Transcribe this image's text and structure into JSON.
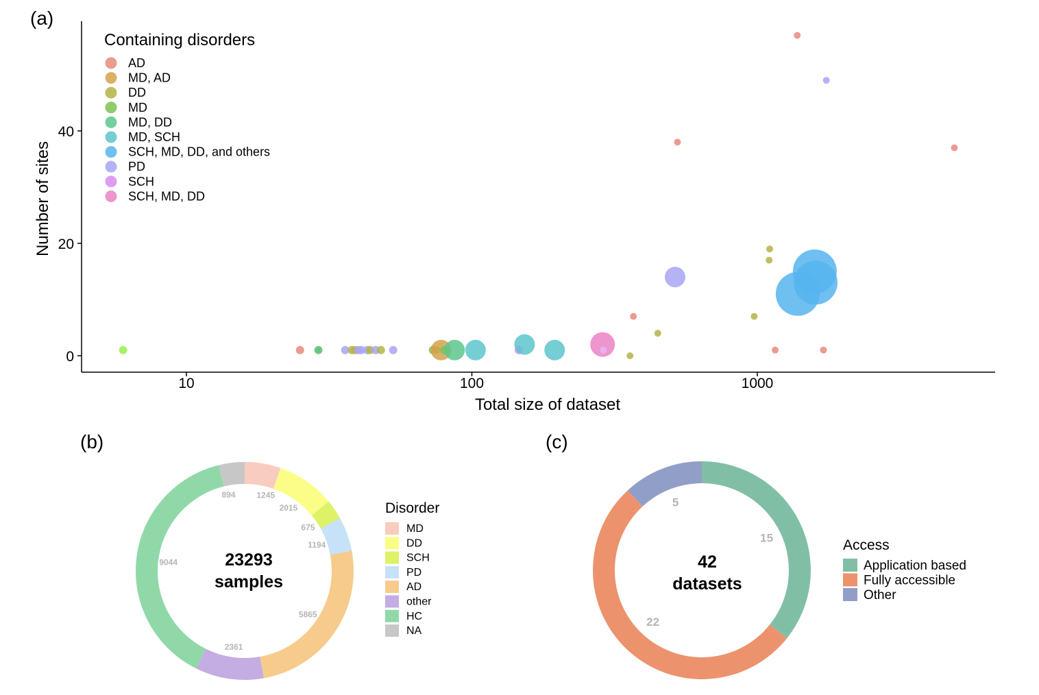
{
  "panels": {
    "a": "(a)",
    "b": "(b)",
    "c": "(c)"
  },
  "chart_data": [
    {
      "type": "scatter",
      "panel": "(a)",
      "title": "",
      "xlabel": "Total size of dataset",
      "ylabel": "Number of sites",
      "x_scale": "log",
      "x_ticks": [
        10,
        100,
        1000
      ],
      "x_tick_labels": [
        "10",
        "100",
        "1000"
      ],
      "y_ticks": [
        0,
        20,
        40
      ],
      "y_tick_labels": [
        "0",
        "20",
        "40"
      ],
      "xlim": [
        4.7,
        5500
      ],
      "ylim": [
        -3,
        60
      ],
      "grid": false,
      "legend_title": "Containing disorders",
      "legend_position": "top-left",
      "categories": [
        {
          "name": "AD",
          "color": "#E8897C"
        },
        {
          "name": "MD, AD",
          "color": "#D4A24C"
        },
        {
          "name": "DD",
          "color": "#B5B348"
        },
        {
          "name": "MD",
          "color": "#7DC351"
        },
        {
          "name": "MD, DD",
          "color": "#5DC68D"
        },
        {
          "name": "MD, SCH",
          "color": "#5CC5CB"
        },
        {
          "name": "SCH, MD, DD, and others",
          "color": "#56B4EE"
        },
        {
          "name": "PD",
          "color": "#A8A5F5"
        },
        {
          "name": "SCH",
          "color": "#D78CF0"
        },
        {
          "name": "SCH, MD, DD",
          "color": "#EC82C5"
        }
      ],
      "points": [
        {
          "x": 6,
          "y": 1,
          "cat": "MD",
          "size": 6,
          "color": "#99EE4C"
        },
        {
          "x": 25,
          "y": 1,
          "cat": "AD",
          "size": 6
        },
        {
          "x": 29,
          "y": 1,
          "cat": "MD",
          "size": 6
        },
        {
          "x": 29,
          "y": 1,
          "cat": "MD, DD",
          "size": 5
        },
        {
          "x": 36,
          "y": 1,
          "cat": "PD",
          "size": 6
        },
        {
          "x": 38,
          "y": 1,
          "cat": "DD",
          "size": 6
        },
        {
          "x": 39,
          "y": 1,
          "cat": "DD",
          "size": 6
        },
        {
          "x": 40,
          "y": 1,
          "cat": "PD",
          "size": 6
        },
        {
          "x": 41,
          "y": 1,
          "cat": "PD",
          "size": 6
        },
        {
          "x": 43,
          "y": 1,
          "cat": "PD",
          "size": 6
        },
        {
          "x": 44,
          "y": 1,
          "cat": "DD",
          "size": 6
        },
        {
          "x": 46,
          "y": 1,
          "cat": "PD",
          "size": 6
        },
        {
          "x": 48,
          "y": 1,
          "cat": "DD",
          "size": 6
        },
        {
          "x": 53,
          "y": 1,
          "cat": "PD",
          "size": 6
        },
        {
          "x": 73,
          "y": 1,
          "cat": "MD",
          "size": 6
        },
        {
          "x": 75,
          "y": 1,
          "cat": "DD",
          "size": 6
        },
        {
          "x": 78,
          "y": 1,
          "cat": "MD, AD",
          "size": 15
        },
        {
          "x": 80,
          "y": 1,
          "cat": "MD",
          "size": 6
        },
        {
          "x": 87,
          "y": 1,
          "cat": "MD, DD",
          "size": 15
        },
        {
          "x": 103,
          "y": 1,
          "cat": "MD, SCH",
          "size": 15
        },
        {
          "x": 146,
          "y": 1,
          "cat": "SCH",
          "size": 6
        },
        {
          "x": 153,
          "y": 2,
          "cat": "MD, SCH",
          "size": 15
        },
        {
          "x": 195,
          "y": 1,
          "cat": "MD, SCH",
          "size": 15
        },
        {
          "x": 287,
          "y": 2,
          "cat": "SCH, MD, DD",
          "size": 18
        },
        {
          "x": 289,
          "y": 1,
          "cat": "SCH",
          "size": 5,
          "color": "#E6B6F7"
        },
        {
          "x": 358,
          "y": 0,
          "cat": "DD",
          "size": 5
        },
        {
          "x": 368,
          "y": 7,
          "cat": "AD",
          "size": 5
        },
        {
          "x": 448,
          "y": 4,
          "cat": "DD",
          "size": 5
        },
        {
          "x": 515,
          "y": 14,
          "cat": "PD",
          "size": 15
        },
        {
          "x": 525,
          "y": 38,
          "cat": "AD",
          "size": 5
        },
        {
          "x": 975,
          "y": 7,
          "cat": "DD",
          "size": 5
        },
        {
          "x": 1100,
          "y": 17,
          "cat": "DD",
          "size": 5
        },
        {
          "x": 1105,
          "y": 19,
          "cat": "DD",
          "size": 5
        },
        {
          "x": 1155,
          "y": 1,
          "cat": "AD",
          "size": 5
        },
        {
          "x": 1380,
          "y": 57,
          "cat": "AD",
          "size": 5
        },
        {
          "x": 1385,
          "y": 11,
          "cat": "SCH, MD, DD, and others",
          "size": 32
        },
        {
          "x": 1590,
          "y": 15,
          "cat": "SCH, MD, DD, and others",
          "size": 32
        },
        {
          "x": 1600,
          "y": 13,
          "cat": "SCH, MD, DD, and others",
          "size": 32
        },
        {
          "x": 1705,
          "y": 1,
          "cat": "AD",
          "size": 5
        },
        {
          "x": 1745,
          "y": 49,
          "cat": "PD",
          "size": 5
        },
        {
          "x": 4900,
          "y": 37,
          "cat": "AD",
          "size": 5
        }
      ]
    },
    {
      "type": "pie",
      "panel": "(b)",
      "title": "",
      "center_value": "23293",
      "center_label": "samples",
      "legend_title": "Disorder",
      "legend_position": "right",
      "categories": [
        "MD",
        "DD",
        "SCH",
        "PD",
        "AD",
        "other",
        "HC",
        "NA"
      ],
      "values": [
        1245,
        2015,
        675,
        1194,
        5865,
        2361,
        9044,
        894
      ],
      "labels": [
        "1245",
        "2015",
        "675",
        "1194",
        "5865",
        "2361",
        "9044",
        "894"
      ],
      "colors": [
        "#F8CCBF",
        "#FBFD87",
        "#DDF266",
        "#C6E2F8",
        "#F7CB8C",
        "#C3ADE3",
        "#91D8A9",
        "#C7C7C7"
      ]
    },
    {
      "type": "pie",
      "panel": "(c)",
      "title": "",
      "center_value": "42",
      "center_label": "datasets",
      "legend_title": "Access",
      "legend_position": "right",
      "categories": [
        "Application based",
        "Fully accessible",
        "Other"
      ],
      "values": [
        15,
        22,
        5
      ],
      "labels": [
        "15",
        "22",
        "5"
      ],
      "colors": [
        "#80BFA6",
        "#EC936D",
        "#919EC8"
      ]
    }
  ]
}
